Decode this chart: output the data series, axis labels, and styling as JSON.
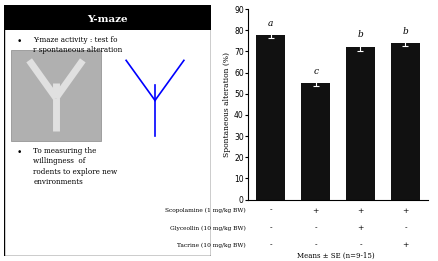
{
  "bar_values": [
    78,
    55,
    72,
    74
  ],
  "bar_errors": [
    1.5,
    1.5,
    2.0,
    1.5
  ],
  "bar_color": "#111111",
  "bar_labels": [
    "a",
    "c",
    "b",
    "b"
  ],
  "ylabel": "Spontaneous alteration (%)",
  "ylim": [
    0,
    90
  ],
  "yticks": [
    0,
    10,
    20,
    30,
    40,
    50,
    60,
    70,
    80,
    90
  ],
  "row_labels": [
    "Scopolamine (1 mg/kg BW)",
    "Glyceollin (10 mg/kg BW)",
    "Tacrine (10 mg/kg BW)"
  ],
  "row_signs": [
    [
      "-",
      "+",
      "+",
      "+"
    ],
    [
      "-",
      "-",
      "+",
      "-"
    ],
    [
      "-",
      "-",
      "-",
      "+"
    ]
  ],
  "means_text": "Means ± SE (n=9-15)",
  "left_title": "Y-maze",
  "bullet1": "Y-maze activity : test fo\nr spontaneous alteration",
  "bullet2": "To measuring the\nwillingness  of\nrodents to explore new\nenvironments"
}
